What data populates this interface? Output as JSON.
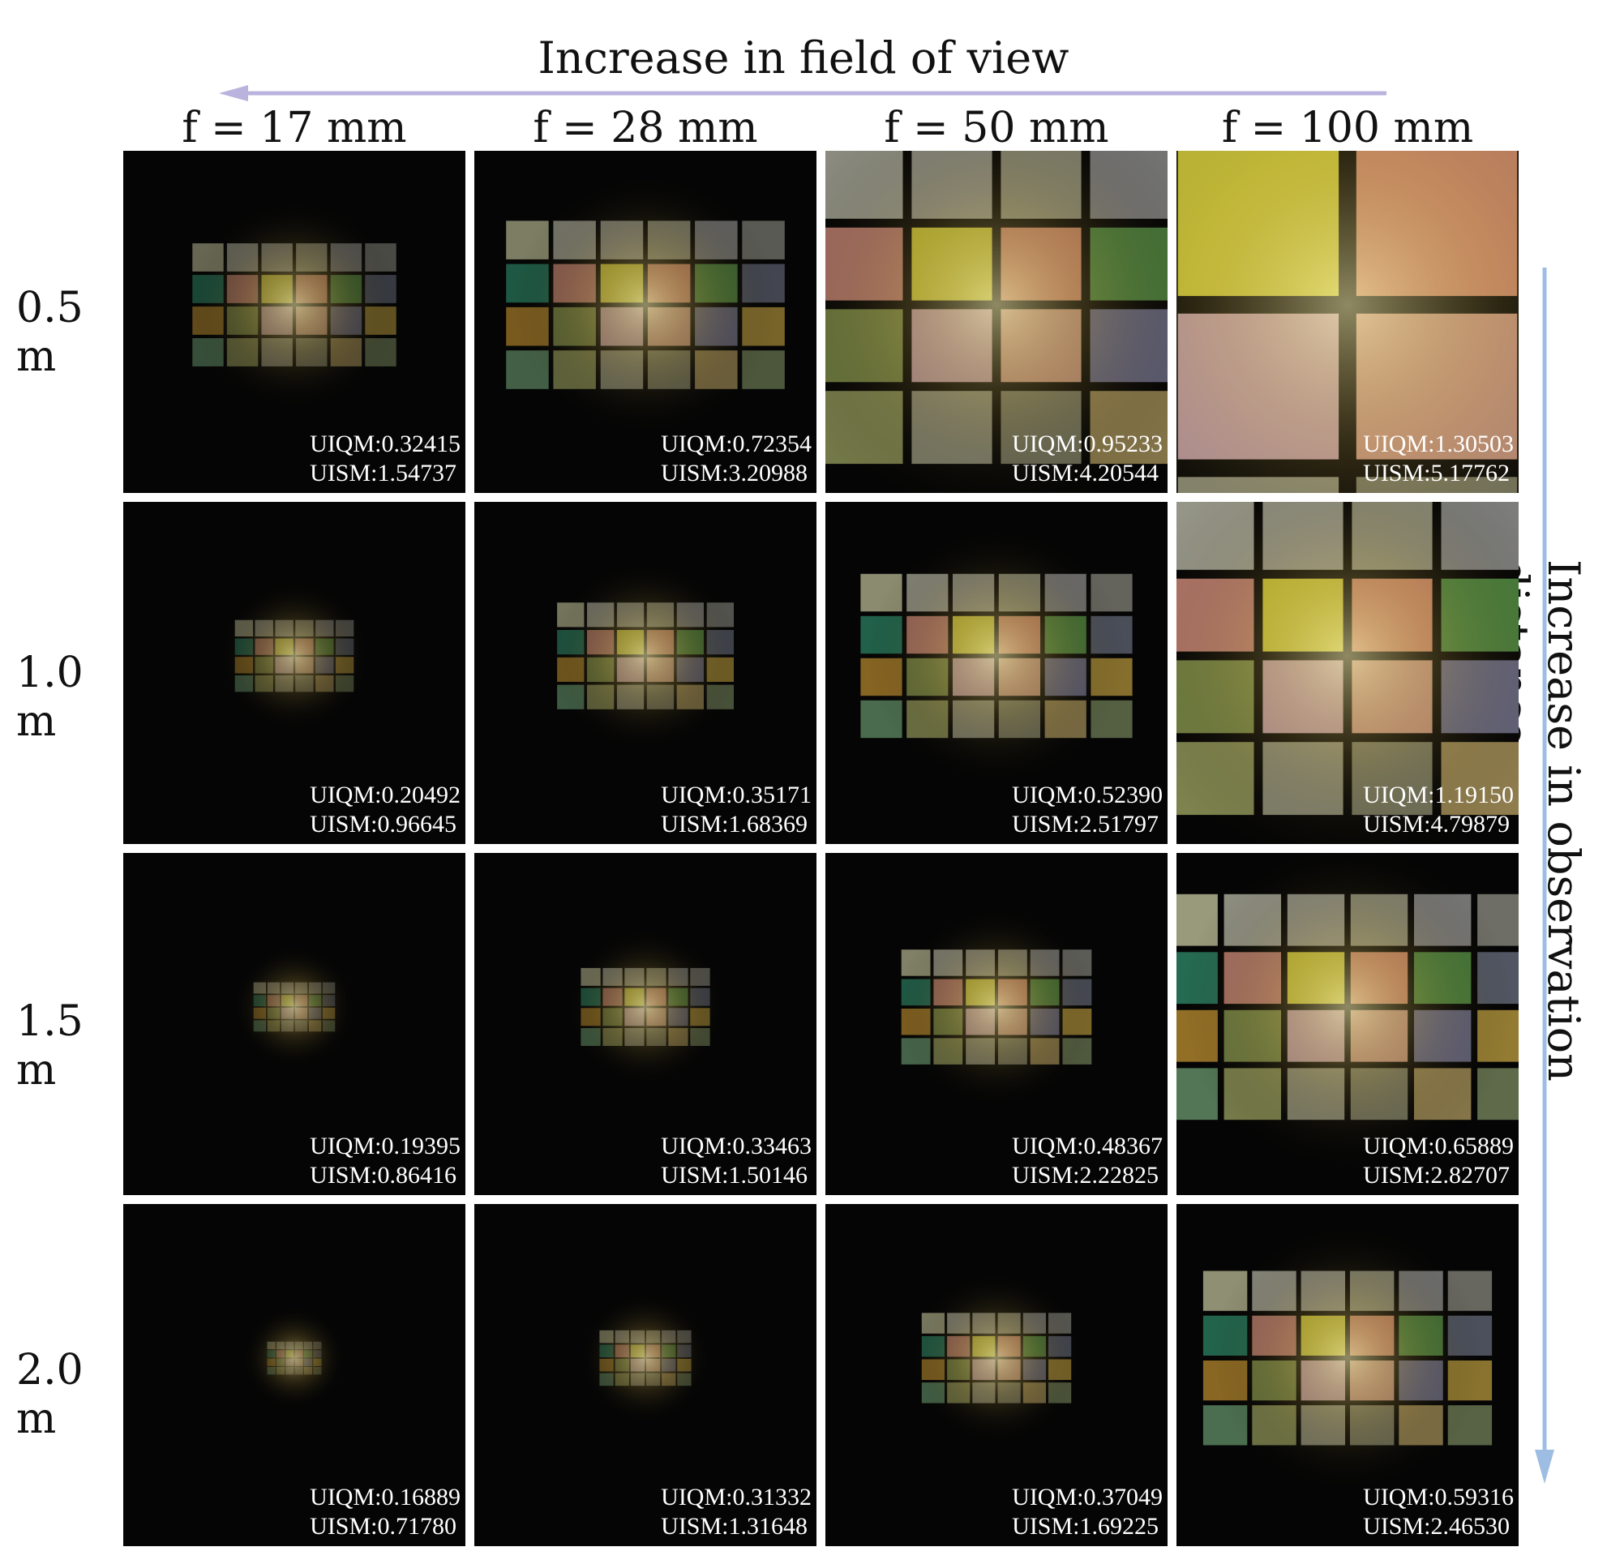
{
  "header": {
    "top_label": "Increase in field of view",
    "right_label": "Increase in observation distance"
  },
  "columns": [
    "f = 17 mm",
    "f = 28 mm",
    "f = 50 mm",
    "f = 100 mm"
  ],
  "rows": [
    {
      "label": "0.5 m",
      "cells": [
        {
          "uiqm": "UIQM:0.32415",
          "uism": "UISM:1.54737"
        },
        {
          "uiqm": "UIQM:0.72354",
          "uism": "UISM:3.20988"
        },
        {
          "uiqm": "UIQM:0.95233",
          "uism": "UISM:4.20544"
        },
        {
          "uiqm": "UIQM:1.30503",
          "uism": "UISM:5.17762"
        }
      ]
    },
    {
      "label": "1.0 m",
      "cells": [
        {
          "uiqm": "UIQM:0.20492",
          "uism": "UISM:0.96645"
        },
        {
          "uiqm": "UIQM:0.35171",
          "uism": "UISM:1.68369"
        },
        {
          "uiqm": "UIQM:0.52390",
          "uism": "UISM:2.51797"
        },
        {
          "uiqm": "UIQM:1.19150",
          "uism": "UISM:4.79879"
        }
      ]
    },
    {
      "label": "1.5 m",
      "cells": [
        {
          "uiqm": "UIQM:0.19395",
          "uism": "UISM:0.86416"
        },
        {
          "uiqm": "UIQM:0.33463",
          "uism": "UISM:1.50146"
        },
        {
          "uiqm": "UIQM:0.48367",
          "uism": "UISM:2.22825"
        },
        {
          "uiqm": "UIQM:0.65889",
          "uism": "UISM:2.82707"
        }
      ]
    },
    {
      "label": "2.0 m",
      "cells": [
        {
          "uiqm": "UIQM:0.16889",
          "uism": "UISM:0.71780"
        },
        {
          "uiqm": "UIQM:0.31332",
          "uism": "UISM:1.31648"
        },
        {
          "uiqm": "UIQM:0.37049",
          "uism": "UISM:1.69225"
        },
        {
          "uiqm": "UIQM:0.59316",
          "uism": "UISM:2.46530"
        }
      ]
    }
  ],
  "colors": {
    "arrow_horizontal": "#b9b3dd",
    "arrow_vertical": "#9dbde3",
    "cell_background": "#050505",
    "patch_palette": [
      "#c8c8a0",
      "#b9b9a8",
      "#b0b0a0",
      "#a8a890",
      "#9a9a98",
      "#8f8f86",
      "#2f8a6a",
      "#d89080",
      "#e6e040",
      "#e89a78",
      "#5a9a4a",
      "#6a7080",
      "#c09030",
      "#8a9a50",
      "#d8b0b8",
      "#e0a890",
      "#7a7a98",
      "#c0a040",
      "#6a9a70",
      "#9aa060",
      "#a0a088",
      "#8a8a70",
      "#b09a60",
      "#7a8a60"
    ]
  }
}
